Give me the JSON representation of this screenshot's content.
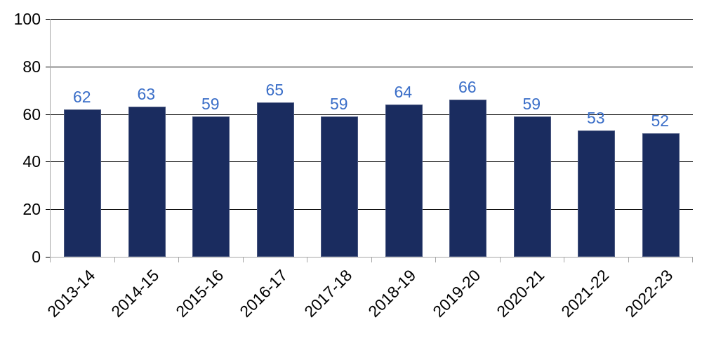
{
  "chart_data": {
    "type": "bar",
    "categories": [
      "2013-14",
      "2014-15",
      "2015-16",
      "2016-17",
      "2017-18",
      "2018-19",
      "2019-20",
      "2020-21",
      "2021-22",
      "2022-23"
    ],
    "values": [
      62,
      63,
      59,
      65,
      59,
      64,
      66,
      59,
      53,
      52
    ],
    "title": "",
    "xlabel": "",
    "ylabel": "",
    "ylim": [
      0,
      100
    ],
    "yticks": [
      0,
      20,
      40,
      60,
      80,
      100
    ],
    "grid": true,
    "legend_position": "none",
    "data_labels": true,
    "colors": {
      "bar_fill": "#1a2c5f",
      "bar_border": "#4a5880",
      "data_label": "#3a6ec8",
      "gridline": "#000000",
      "axis_line": "#a6a6a6",
      "tick_label": "#000000"
    }
  }
}
